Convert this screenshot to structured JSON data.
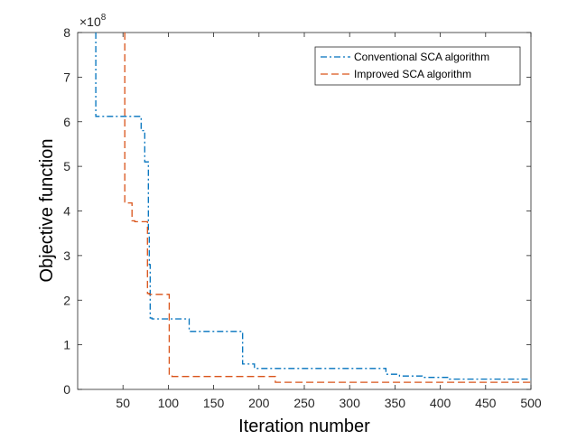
{
  "chart_data": {
    "type": "line",
    "title": "",
    "xlabel": "Iteration number",
    "ylabel": "Objective function",
    "xlim": [
      0,
      500
    ],
    "ylim": [
      0,
      8
    ],
    "xticks": [
      50,
      100,
      150,
      200,
      250,
      300,
      350,
      400,
      450,
      500
    ],
    "yticks": [
      0,
      1,
      2,
      3,
      4,
      5,
      6,
      7,
      8
    ],
    "y_multiplier": {
      "base": "×10",
      "exponent": "8"
    },
    "grid": false,
    "legend_position": "top-right",
    "series": [
      {
        "name": "Conventional SCA algorithm",
        "color": "#0072BD",
        "dash": "dash-dot",
        "x": [
          20,
          20,
          70,
          70,
          74,
          74,
          78,
          78,
          79,
          79,
          80,
          80,
          82,
          82,
          123,
          123,
          182,
          182,
          195,
          195,
          340,
          340,
          355,
          355,
          380,
          380,
          410,
          410,
          500
        ],
        "y": [
          8.0,
          6.12,
          6.12,
          5.8,
          5.8,
          5.1,
          5.1,
          3.5,
          3.5,
          2.8,
          2.8,
          1.6,
          1.6,
          1.58,
          1.58,
          1.3,
          1.3,
          0.57,
          0.57,
          0.47,
          0.47,
          0.34,
          0.34,
          0.3,
          0.3,
          0.27,
          0.27,
          0.23,
          0.23
        ]
      },
      {
        "name": "Improved SCA algorithm",
        "color": "#D95319",
        "dash": "dashed",
        "x": [
          52,
          52,
          55,
          55,
          60,
          60,
          63,
          63,
          77,
          77,
          79,
          79,
          101,
          101,
          104,
          104,
          218,
          218,
          500
        ],
        "y": [
          8.0,
          4.2,
          4.2,
          4.18,
          4.18,
          3.78,
          3.78,
          3.76,
          3.76,
          2.15,
          2.15,
          2.13,
          2.13,
          0.3,
          0.3,
          0.29,
          0.29,
          0.16,
          0.16
        ]
      }
    ]
  }
}
